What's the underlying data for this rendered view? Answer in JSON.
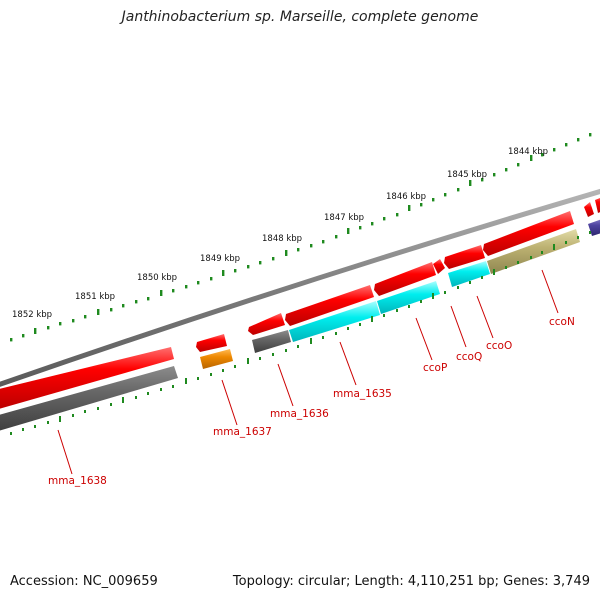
{
  "title": "Janthinobacterium sp. Marseille, complete genome",
  "footer": {
    "accession": "Accession: NC_009659",
    "stats": "Topology: circular; Length: 4,110,251 bp; Genes: 3,749"
  },
  "colors": {
    "backbone": "#8a8a8a",
    "tick_green": "#1f8a1f",
    "forward_gene": "#ee0000",
    "reverse_gray": "#6b6b6b",
    "reverse_cyan": "#00e5ee",
    "reverse_orange": "#ee8800",
    "reverse_olive": "#b8ae6a",
    "reverse_purple": "#4a3f9a",
    "label_red": "#cc0000"
  },
  "kbp_labels": [
    {
      "text": "1852 kbp",
      "kbp": 1852
    },
    {
      "text": "1851 kbp",
      "kbp": 1851
    },
    {
      "text": "1850 kbp",
      "kbp": 1850
    },
    {
      "text": "1849 kbp",
      "kbp": 1849
    },
    {
      "text": "1848 kbp",
      "kbp": 1848
    },
    {
      "text": "1847 kbp",
      "kbp": 1847
    },
    {
      "text": "1846 kbp",
      "kbp": 1846
    },
    {
      "text": "1845 kbp",
      "kbp": 1845
    },
    {
      "text": "1844 kbp",
      "kbp": 1844
    }
  ],
  "gene_labels": [
    {
      "name": "mma_1638"
    },
    {
      "name": "mma_1637"
    },
    {
      "name": "mma_1636"
    },
    {
      "name": "mma_1635"
    },
    {
      "name": "ccoP"
    },
    {
      "name": "ccoQ"
    },
    {
      "name": "ccoO"
    },
    {
      "name": "ccoN"
    }
  ]
}
